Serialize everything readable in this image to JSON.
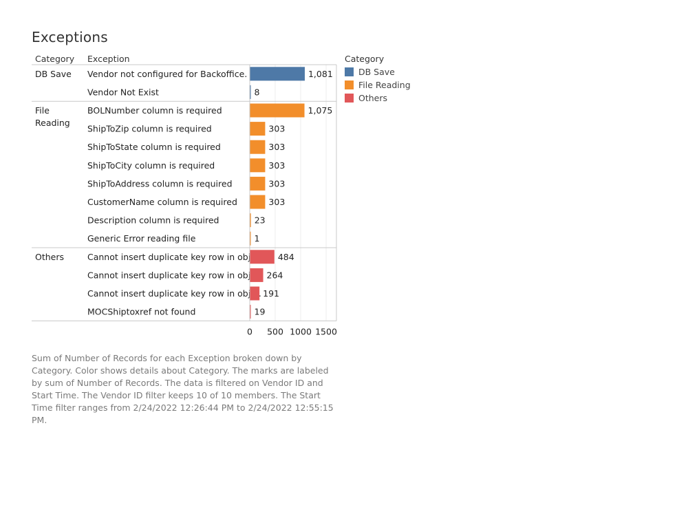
{
  "page": {
    "title": "Exceptions",
    "description": "Sum of Number of Records for each Exception broken down by Category. Color shows details about Category.  The marks are labeled by sum of Number of Records. The data is filtered on Vendor ID and Start Time. The Vendor ID filter keeps 10 of 10 members. The Start Time filter ranges from 2/24/2022 12:26:44 PM to 2/24/2022 12:55:15 PM."
  },
  "legend": {
    "title": "Category",
    "items": [
      {
        "label": "DB Save",
        "color": "#4e79a7"
      },
      {
        "label": "File Reading",
        "color": "#f28e2b"
      },
      {
        "label": "Others",
        "color": "#e15759"
      }
    ]
  },
  "chart_data": {
    "type": "bar",
    "orientation": "horizontal",
    "column_headers": [
      "Category",
      "Exception"
    ],
    "xlim": [
      0,
      1500
    ],
    "x_ticks": [
      "0",
      "500",
      "1000",
      "1500"
    ],
    "grid": true,
    "legend_position": "right",
    "groups": [
      {
        "category": "DB Save",
        "category_lines": [
          "DB Save"
        ],
        "color": "#4e79a7",
        "rows": [
          {
            "exception": "Vendor not configured for Backoffice.",
            "value": 1081,
            "label": "1,081"
          },
          {
            "exception": "Vendor Not Exist",
            "value": 8,
            "label": "8"
          }
        ]
      },
      {
        "category": "File Reading",
        "category_lines": [
          "File",
          "Reading"
        ],
        "color": "#f28e2b",
        "rows": [
          {
            "exception": "BOLNumber column is required",
            "value": 1075,
            "label": "1,075"
          },
          {
            "exception": "ShipToZip column is required",
            "value": 303,
            "label": "303"
          },
          {
            "exception": "ShipToState column is required",
            "value": 303,
            "label": "303"
          },
          {
            "exception": "ShipToCity column is required",
            "value": 303,
            "label": "303"
          },
          {
            "exception": "ShipToAddress column is required",
            "value": 303,
            "label": "303"
          },
          {
            "exception": "CustomerName column is required",
            "value": 303,
            "label": "303"
          },
          {
            "exception": "Description column is required",
            "value": 23,
            "label": "23"
          },
          {
            "exception": "Generic Error reading file",
            "value": 1,
            "label": "1"
          }
        ]
      },
      {
        "category": "Others",
        "category_lines": [
          "Others"
        ],
        "color": "#e15759",
        "rows": [
          {
            "exception": "Cannot insert duplicate key row in obje..",
            "value": 484,
            "label": "484"
          },
          {
            "exception": "Cannot insert duplicate key row in obje..",
            "value": 264,
            "label": "264"
          },
          {
            "exception": "Cannot insert duplicate key row in obje..",
            "value": 191,
            "label": "191"
          },
          {
            "exception": "MOCShiptoxref not found",
            "value": 19,
            "label": "19"
          }
        ]
      }
    ]
  }
}
